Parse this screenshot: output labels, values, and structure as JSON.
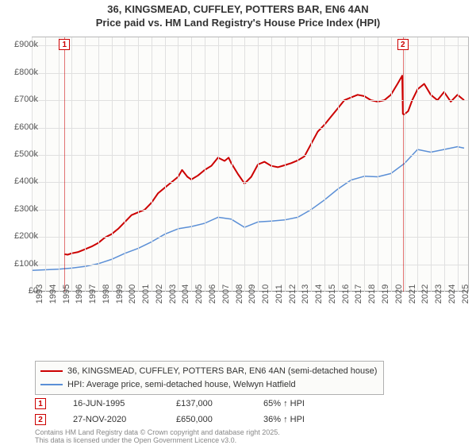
{
  "title": {
    "line1": "36, KINGSMEAD, CUFFLEY, POTTERS BAR, EN6 4AN",
    "line2": "Price paid vs. HM Land Registry's House Price Index (HPI)"
  },
  "chart": {
    "type": "line",
    "background_color": "#fcfcfa",
    "grid_color": "#e0e0e0",
    "axis_color": "#888888",
    "text_color": "#555555",
    "title_fontsize": 13,
    "tick_fontsize": 11,
    "x": {
      "min": 1993,
      "max": 2025.8,
      "tick_step": 1,
      "ticks": [
        1993,
        1994,
        1995,
        1996,
        1997,
        1998,
        1999,
        2000,
        2001,
        2002,
        2003,
        2004,
        2005,
        2006,
        2007,
        2008,
        2009,
        2010,
        2011,
        2012,
        2013,
        2014,
        2015,
        2016,
        2017,
        2018,
        2019,
        2020,
        2021,
        2022,
        2023,
        2024,
        2025
      ]
    },
    "y": {
      "min": 0,
      "max": 930000,
      "tick_step": 100000,
      "ticks": [
        0,
        100000,
        200000,
        300000,
        400000,
        500000,
        600000,
        700000,
        800000,
        900000
      ],
      "tick_labels": [
        "£0",
        "£100k",
        "£200k",
        "£300k",
        "£400k",
        "£500k",
        "£600k",
        "£700k",
        "£800k",
        "£900k"
      ]
    },
    "series": [
      {
        "name": "36, KINGSMEAD, CUFFLEY, POTTERS BAR, EN6 4AN (semi-detached house)",
        "color": "#cc0000",
        "line_width": 2,
        "points": [
          [
            1995.46,
            137000
          ],
          [
            1995.7,
            135000
          ],
          [
            1996.0,
            140000
          ],
          [
            1996.5,
            145000
          ],
          [
            1997.0,
            155000
          ],
          [
            1997.5,
            165000
          ],
          [
            1998.0,
            178000
          ],
          [
            1998.5,
            198000
          ],
          [
            1999.0,
            210000
          ],
          [
            1999.5,
            230000
          ],
          [
            2000.0,
            255000
          ],
          [
            2000.5,
            280000
          ],
          [
            2001.0,
            290000
          ],
          [
            2001.5,
            300000
          ],
          [
            2002.0,
            325000
          ],
          [
            2002.5,
            360000
          ],
          [
            2003.0,
            380000
          ],
          [
            2003.5,
            400000
          ],
          [
            2004.0,
            420000
          ],
          [
            2004.3,
            445000
          ],
          [
            2004.7,
            420000
          ],
          [
            2005.0,
            410000
          ],
          [
            2005.5,
            425000
          ],
          [
            2006.0,
            445000
          ],
          [
            2006.5,
            460000
          ],
          [
            2007.0,
            490000
          ],
          [
            2007.5,
            478000
          ],
          [
            2007.8,
            490000
          ],
          [
            2008.0,
            470000
          ],
          [
            2008.5,
            430000
          ],
          [
            2009.0,
            395000
          ],
          [
            2009.5,
            420000
          ],
          [
            2010.0,
            465000
          ],
          [
            2010.5,
            475000
          ],
          [
            2011.0,
            460000
          ],
          [
            2011.5,
            455000
          ],
          [
            2012.0,
            462000
          ],
          [
            2012.5,
            470000
          ],
          [
            2013.0,
            480000
          ],
          [
            2013.5,
            495000
          ],
          [
            2014.0,
            540000
          ],
          [
            2014.5,
            585000
          ],
          [
            2015.0,
            610000
          ],
          [
            2015.5,
            640000
          ],
          [
            2016.0,
            670000
          ],
          [
            2016.5,
            700000
          ],
          [
            2017.0,
            710000
          ],
          [
            2017.5,
            720000
          ],
          [
            2018.0,
            715000
          ],
          [
            2018.5,
            700000
          ],
          [
            2019.0,
            695000
          ],
          [
            2019.5,
            700000
          ],
          [
            2020.0,
            720000
          ],
          [
            2020.5,
            760000
          ],
          [
            2020.85,
            790000
          ],
          [
            2020.9,
            650000
          ],
          [
            2021.0,
            648000
          ],
          [
            2021.3,
            660000
          ],
          [
            2021.6,
            700000
          ],
          [
            2022.0,
            740000
          ],
          [
            2022.5,
            760000
          ],
          [
            2023.0,
            720000
          ],
          [
            2023.5,
            700000
          ],
          [
            2024.0,
            730000
          ],
          [
            2024.5,
            695000
          ],
          [
            2025.0,
            720000
          ],
          [
            2025.5,
            700000
          ]
        ]
      },
      {
        "name": "HPI: Average price, semi-detached house, Welwyn Hatfield",
        "color": "#5b8fd6",
        "line_width": 1.5,
        "points": [
          [
            1993.0,
            78000
          ],
          [
            1994.0,
            80000
          ],
          [
            1995.0,
            82000
          ],
          [
            1996.0,
            86000
          ],
          [
            1997.0,
            92000
          ],
          [
            1998.0,
            102000
          ],
          [
            1999.0,
            118000
          ],
          [
            2000.0,
            140000
          ],
          [
            2001.0,
            158000
          ],
          [
            2002.0,
            182000
          ],
          [
            2003.0,
            210000
          ],
          [
            2004.0,
            230000
          ],
          [
            2005.0,
            238000
          ],
          [
            2006.0,
            250000
          ],
          [
            2007.0,
            272000
          ],
          [
            2008.0,
            265000
          ],
          [
            2009.0,
            235000
          ],
          [
            2010.0,
            255000
          ],
          [
            2011.0,
            258000
          ],
          [
            2012.0,
            262000
          ],
          [
            2013.0,
            272000
          ],
          [
            2014.0,
            300000
          ],
          [
            2015.0,
            335000
          ],
          [
            2016.0,
            375000
          ],
          [
            2017.0,
            408000
          ],
          [
            2018.0,
            422000
          ],
          [
            2019.0,
            420000
          ],
          [
            2020.0,
            432000
          ],
          [
            2021.0,
            468000
          ],
          [
            2022.0,
            520000
          ],
          [
            2023.0,
            510000
          ],
          [
            2024.0,
            520000
          ],
          [
            2025.0,
            530000
          ],
          [
            2025.5,
            525000
          ]
        ]
      }
    ],
    "markers": [
      {
        "label": "1",
        "x": 1995.46,
        "color": "#cc0000"
      },
      {
        "label": "2",
        "x": 2020.9,
        "color": "#cc0000"
      }
    ]
  },
  "legend": {
    "border_color": "#b0b0b0",
    "background_color": "#fbfbf9",
    "fontsize": 11
  },
  "data_points": [
    {
      "marker": "1",
      "date": "16-JUN-1995",
      "price": "£137,000",
      "delta": "65% ↑ HPI"
    },
    {
      "marker": "2",
      "date": "27-NOV-2020",
      "price": "£650,000",
      "delta": "36% ↑ HPI"
    }
  ],
  "footnote": {
    "line1": "Contains HM Land Registry data © Crown copyright and database right 2025.",
    "line2": "This data is licensed under the Open Government Licence v3.0."
  }
}
